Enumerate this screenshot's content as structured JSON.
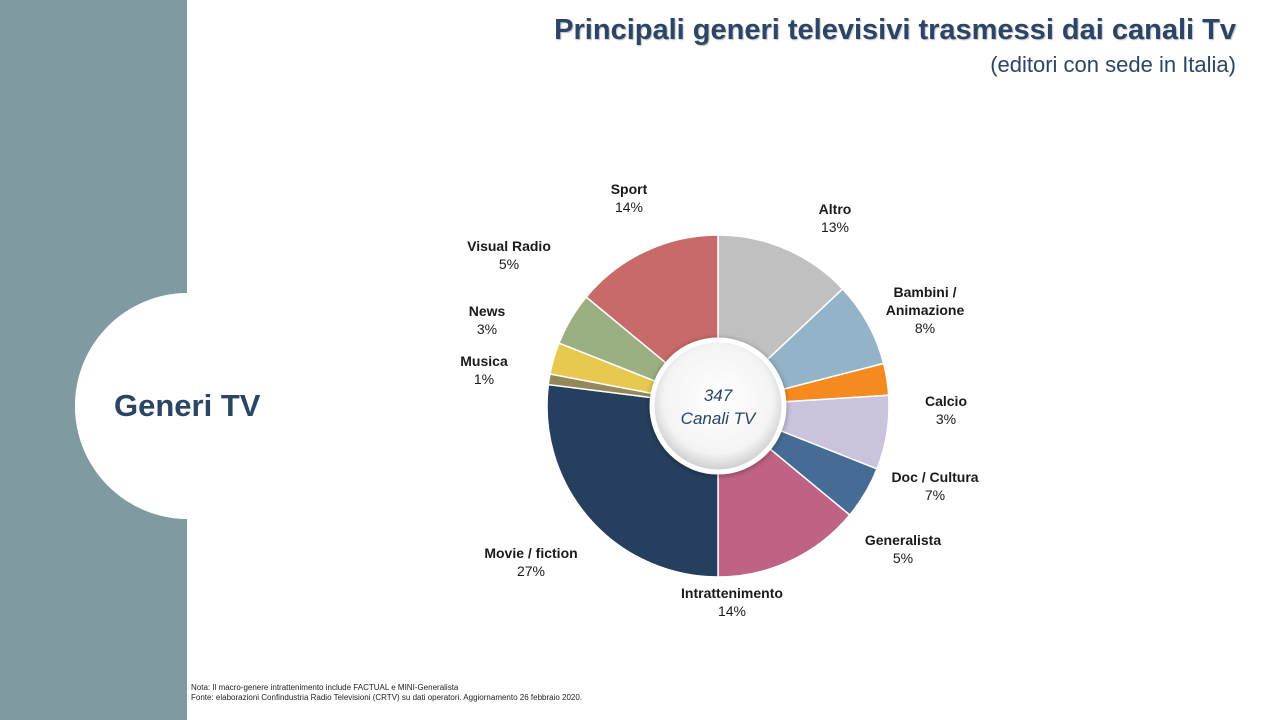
{
  "title": "Principali generi televisivi trasmessi dai canali Tv",
  "subtitle": "(editori con sede in Italia)",
  "section_label": "Generi TV",
  "center_label": {
    "line1": "347",
    "line2": "Canali TV"
  },
  "notes": {
    "line1": "Nota: Il macro-genere intrattenimento include FACTUAL e MINI-Generalista",
    "line2": "Fonte: elaborazioni Confindustria Radio Televisioni (CRTV) su dati operatori. Aggiornamento  26 febbraio 2020."
  },
  "colors": {
    "sidebar": "#7f9aa0",
    "title": "#2b4566"
  },
  "chart_data": {
    "type": "pie",
    "variant": "donut",
    "slices": [
      {
        "name": "Altro",
        "value": 13,
        "label": "13%",
        "color": "#c0c0c0"
      },
      {
        "name": "Bambini / Animazione",
        "value": 8,
        "label": "8%",
        "color": "#93b3c8"
      },
      {
        "name": "Calcio",
        "value": 3,
        "label": "3%",
        "color": "#f58a1f"
      },
      {
        "name": "Doc / Cultura",
        "value": 7,
        "label": "7%",
        "color": "#cbc3dc"
      },
      {
        "name": "Generalista",
        "value": 5,
        "label": "5%",
        "color": "#466c95"
      },
      {
        "name": "Intrattenimento",
        "value": 14,
        "label": "14%",
        "color": "#c06286"
      },
      {
        "name": "Movie / fiction",
        "value": 27,
        "label": "27%",
        "color": "#263f5e"
      },
      {
        "name": "Musica",
        "value": 1,
        "label": "1%",
        "color": "#94875a"
      },
      {
        "name": "News",
        "value": 3,
        "label": "3%",
        "color": "#e6c94e"
      },
      {
        "name": "Visual Radio",
        "value": 5,
        "label": "5%",
        "color": "#9bb082"
      },
      {
        "name": "Sport",
        "value": 14,
        "label": "14%",
        "color": "#c86a68"
      }
    ]
  }
}
